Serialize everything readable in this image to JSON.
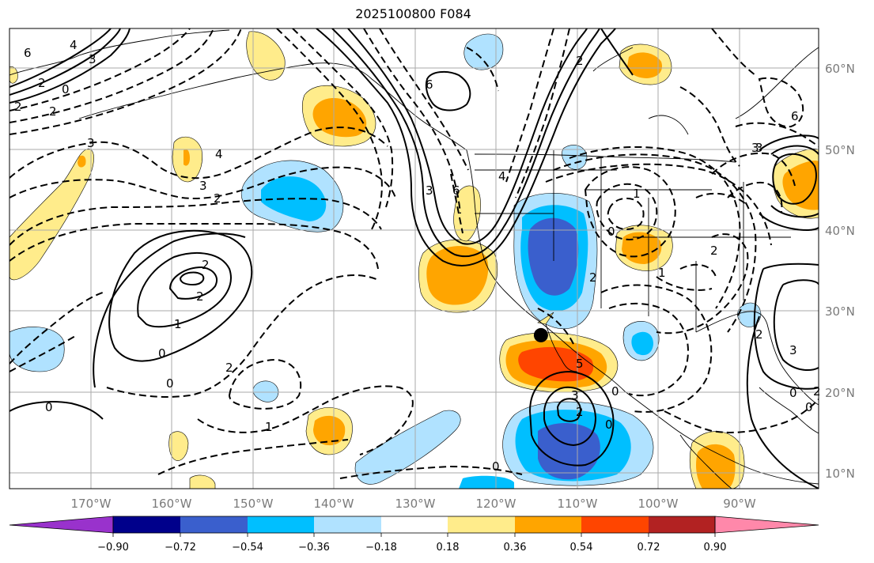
{
  "title": "2025100800 F084",
  "lon_ticks": [
    "170°W",
    "160°W",
    "150°W",
    "140°W",
    "130°W",
    "120°W",
    "110°W",
    "100°W",
    "90°W"
  ],
  "lat_ticks": [
    "60°N",
    "50°N",
    "40°N",
    "30°N",
    "20°N",
    "10°N"
  ],
  "colorbar": {
    "ticks": [
      "−0.90",
      "−0.72",
      "−0.54",
      "−0.36",
      "−0.18",
      "0.18",
      "0.36",
      "0.54",
      "0.72",
      "0.90"
    ],
    "colors": [
      "#9932cc",
      "#00008b",
      "#3a5fcd",
      "#00bfff",
      "#b0e2ff",
      "#ffffff",
      "#ffec8b",
      "#ffa500",
      "#ff4500",
      "#b22222",
      "#ff88aa"
    ]
  },
  "contour_labels": [
    "6",
    "4",
    "3",
    "2",
    "2",
    "0",
    "2",
    "3",
    "4",
    "2",
    "3",
    "2",
    "2",
    "1",
    "0",
    "0",
    "2",
    "1",
    "0",
    "0",
    "4",
    "3",
    "6",
    "6",
    "2",
    "1",
    "0",
    "2",
    "1",
    "3",
    "2",
    "5",
    "3",
    "2",
    "0",
    "0",
    "0",
    "2",
    "3",
    "6",
    "3",
    "2",
    "0"
  ],
  "marker": {
    "lon": -114.5,
    "lat": 27.0,
    "color": "#000000"
  }
}
